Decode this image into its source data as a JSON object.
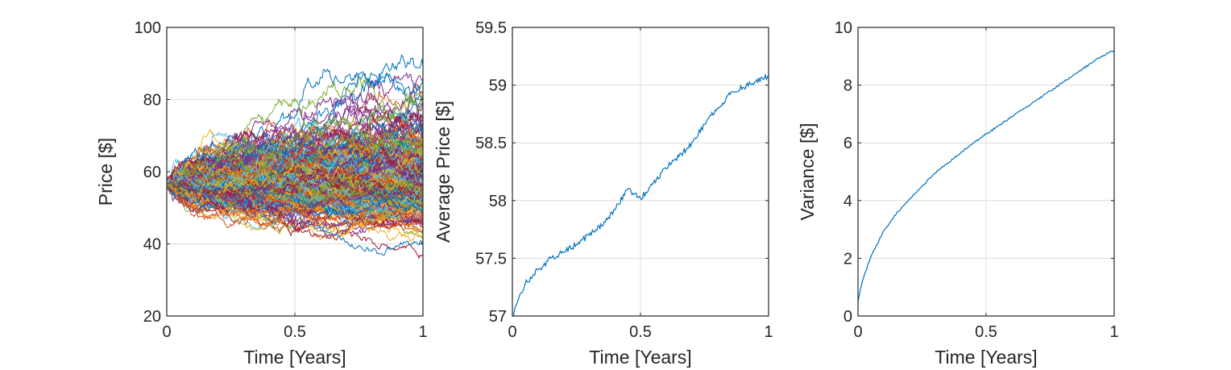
{
  "chart_data": [
    {
      "type": "line",
      "xlabel": "Time [Years]",
      "ylabel": "Price [$]",
      "xlim": [
        0,
        1
      ],
      "ylim": [
        20,
        100
      ],
      "xticks": [
        "0",
        "0.5",
        "1"
      ],
      "yticks": [
        "20",
        "40",
        "60",
        "80",
        "100"
      ],
      "grid": true,
      "description_of_series": "many simulated price paths",
      "paths": {
        "count": 250,
        "start_price": 56.5,
        "ending_range_approx": [
          33,
          99
        ],
        "highest_path_end": 99,
        "lowest_path_end": 33
      },
      "colors": [
        "#0072BD",
        "#D95319",
        "#EDB120",
        "#7E2F8E",
        "#77AC30",
        "#4DBEEE",
        "#A2142F"
      ]
    },
    {
      "type": "line",
      "xlabel": "Time [Years]",
      "ylabel": "Average Price [$]",
      "xlim": [
        0,
        1
      ],
      "ylim": [
        57,
        59.5
      ],
      "xticks": [
        "0",
        "0.5",
        "1"
      ],
      "yticks": [
        "57",
        "57.5",
        "58",
        "58.5",
        "59",
        "59.5"
      ],
      "grid": true,
      "series": [
        {
          "color": "#0072BD",
          "x": [
            0,
            0.05,
            0.1,
            0.15,
            0.2,
            0.25,
            0.3,
            0.35,
            0.4,
            0.45,
            0.5,
            0.55,
            0.6,
            0.65,
            0.7,
            0.75,
            0.8,
            0.85,
            0.9,
            0.95,
            1.0
          ],
          "y": [
            57.0,
            57.28,
            57.4,
            57.5,
            57.55,
            57.62,
            57.7,
            57.78,
            57.92,
            58.1,
            58.02,
            58.15,
            58.28,
            58.38,
            58.5,
            58.66,
            58.8,
            58.92,
            58.98,
            59.03,
            59.08
          ]
        }
      ]
    },
    {
      "type": "line",
      "xlabel": "Time [Years]",
      "ylabel": "Variance [$]",
      "xlim": [
        0,
        1
      ],
      "ylim": [
        0,
        10
      ],
      "xticks": [
        "0",
        "0.5",
        "1"
      ],
      "yticks": [
        "0",
        "2",
        "4",
        "6",
        "8",
        "10"
      ],
      "grid": true,
      "series": [
        {
          "color": "#0072BD",
          "x": [
            0,
            0.01,
            0.02,
            0.05,
            0.1,
            0.15,
            0.2,
            0.25,
            0.3,
            0.35,
            0.4,
            0.45,
            0.5,
            0.55,
            0.6,
            0.65,
            0.7,
            0.75,
            0.8,
            0.85,
            0.9,
            0.95,
            1.0
          ],
          "y": [
            0.5,
            0.95,
            1.3,
            2.05,
            2.95,
            3.55,
            4.05,
            4.5,
            4.95,
            5.3,
            5.65,
            6.0,
            6.3,
            6.6,
            6.9,
            7.2,
            7.5,
            7.8,
            8.1,
            8.4,
            8.7,
            9.0,
            9.2
          ]
        }
      ]
    }
  ]
}
